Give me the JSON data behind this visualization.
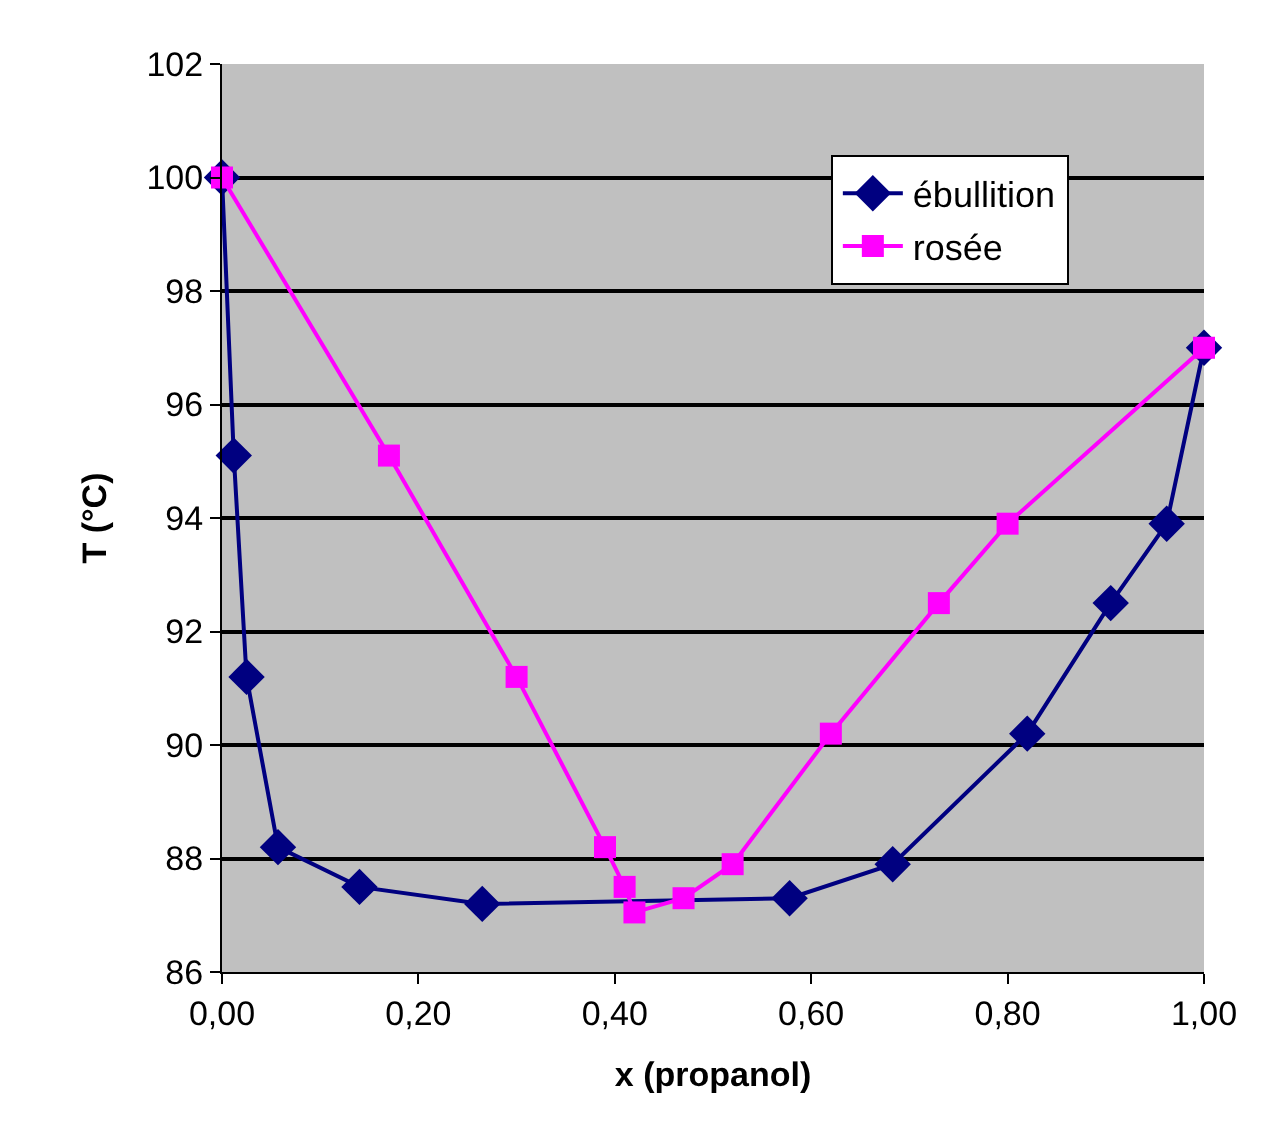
{
  "chart_data": {
    "type": "line",
    "xlabel": "x (propanol)",
    "ylabel": "T (°C)",
    "xlim": [
      0,
      1
    ],
    "ylim": [
      86,
      102
    ],
    "xticks": [
      {
        "value": 0,
        "label": "0,00"
      },
      {
        "value": 0.2,
        "label": "0,20"
      },
      {
        "value": 0.4,
        "label": "0,40"
      },
      {
        "value": 0.6,
        "label": "0,60"
      },
      {
        "value": 0.8,
        "label": "0,80"
      },
      {
        "value": 1,
        "label": "1,00"
      }
    ],
    "yticks": [
      86,
      88,
      90,
      92,
      94,
      96,
      98,
      100,
      102
    ],
    "grid": "y",
    "legend": "top right",
    "line_style": "solid",
    "series": [
      {
        "name": "ébullition",
        "color": "#000080",
        "marker": "diamond",
        "x": [
          0,
          0.012,
          0.025,
          0.057,
          0.14,
          0.265,
          0.578,
          0.683,
          0.82,
          0.905,
          0.962,
          1
        ],
        "values": [
          100,
          95.1,
          91.2,
          88.2,
          87.5,
          87.2,
          87.3,
          87.9,
          90.2,
          92.5,
          93.9,
          97
        ]
      },
      {
        "name": "rosée",
        "color": "#ff00ff",
        "marker": "square",
        "x": [
          0,
          0.17,
          0.3,
          0.39,
          0.41,
          0.42,
          0.47,
          0.52,
          0.62,
          0.73,
          0.8,
          1
        ],
        "values": [
          100,
          95.1,
          91.2,
          88.2,
          87.5,
          87.05,
          87.3,
          87.9,
          90.2,
          92.5,
          93.9,
          97
        ]
      }
    ]
  }
}
